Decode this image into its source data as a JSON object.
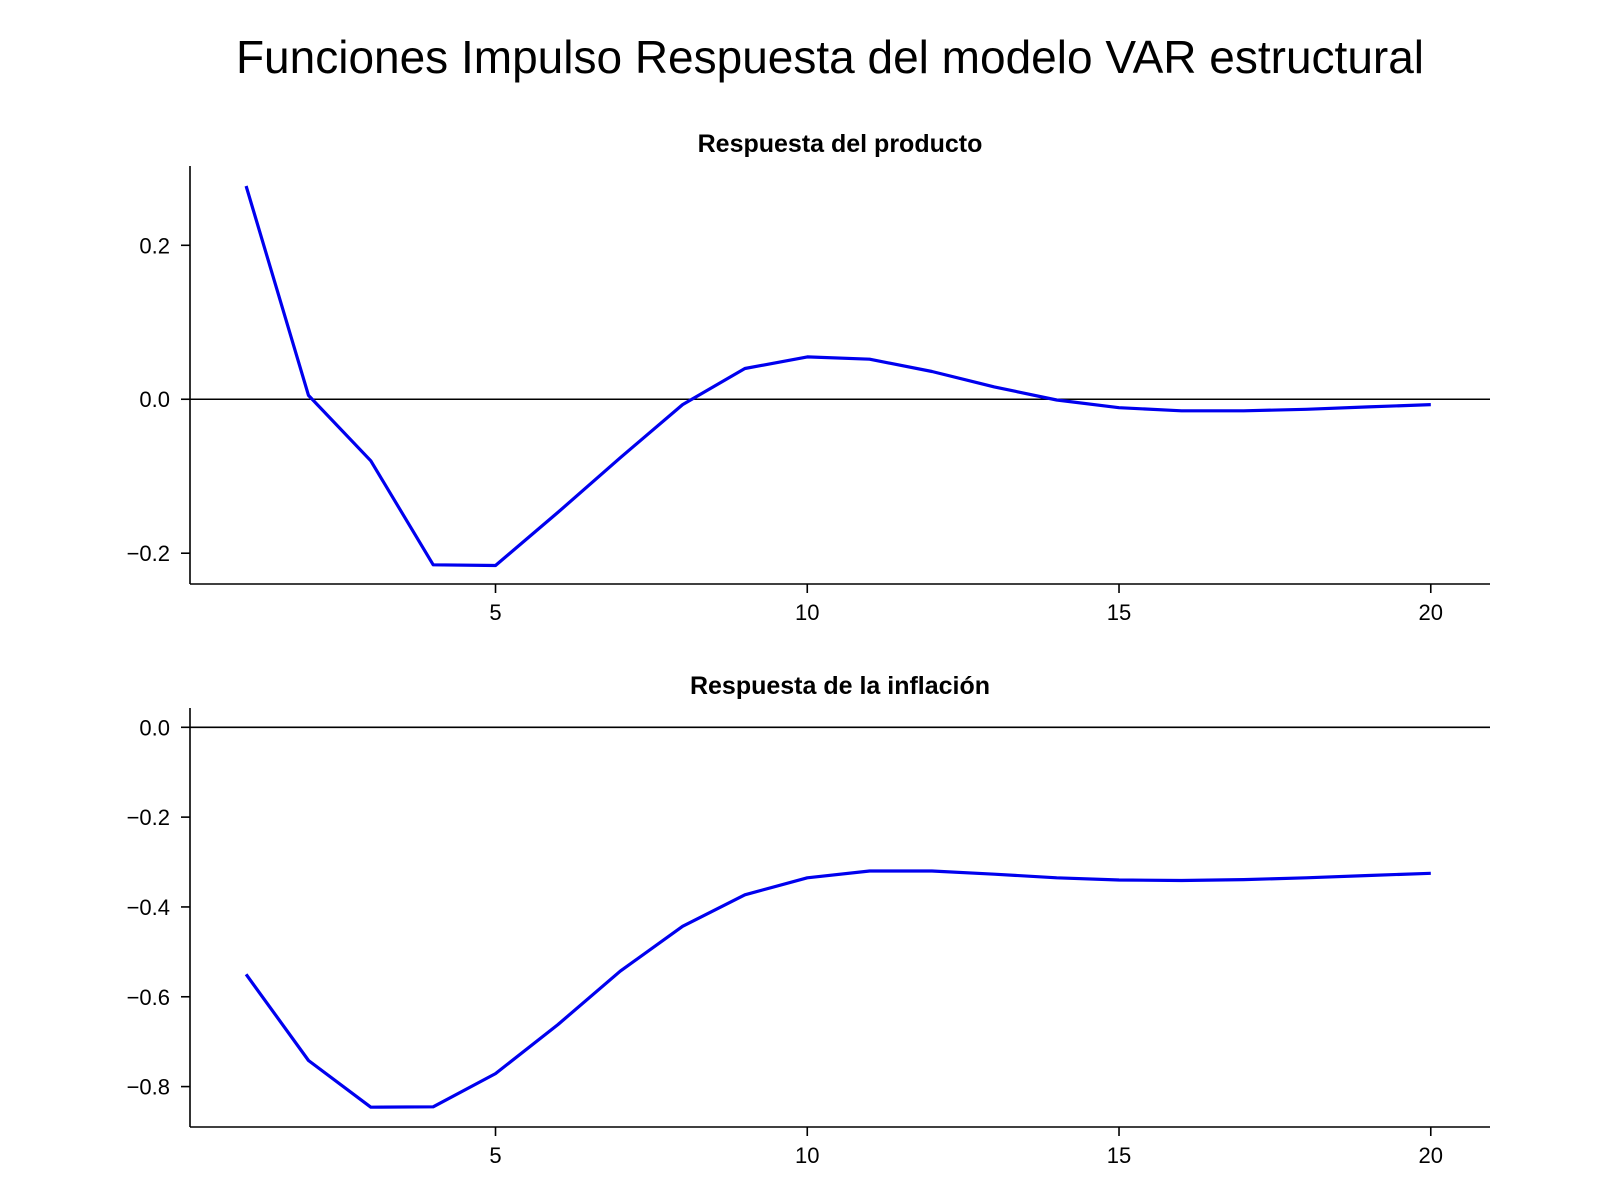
{
  "figure": {
    "title": "Funciones Impulso Respuesta del modelo VAR estructural"
  },
  "colors": {
    "line": "#0000ee",
    "axis": "#000000"
  },
  "chart_data": [
    {
      "type": "line",
      "title": "Respuesta del producto",
      "xlabel": "",
      "ylabel": "",
      "x": [
        1,
        2,
        3,
        4,
        5,
        6,
        7,
        8,
        9,
        10,
        11,
        12,
        13,
        14,
        15,
        16,
        17,
        18,
        19,
        20
      ],
      "series": [
        {
          "values": [
            0.277,
            0.005,
            -0.08,
            -0.215,
            -0.216,
            -0.147,
            -0.076,
            -0.007,
            0.04,
            0.055,
            0.052,
            0.036,
            0.016,
            -0.001,
            -0.011,
            -0.015,
            -0.015,
            -0.013,
            -0.01,
            -0.007
          ]
        }
      ],
      "xlim": [
        0.1,
        20.95
      ],
      "ylim": [
        -0.24,
        0.303
      ],
      "xticks": [
        5,
        10,
        15,
        20
      ],
      "xtick_labels": [
        "5",
        "10",
        "15",
        "20"
      ],
      "yticks": [
        -0.2,
        0.0,
        0.2
      ],
      "ytick_labels": [
        "−0.2",
        "0.0",
        "0.2"
      ],
      "zero_line": true,
      "grid": false,
      "legend": "none"
    },
    {
      "type": "line",
      "title": "Respuesta de la inflación",
      "xlabel": "",
      "ylabel": "",
      "x": [
        1,
        2,
        3,
        4,
        5,
        6,
        7,
        8,
        9,
        10,
        11,
        12,
        13,
        14,
        15,
        16,
        17,
        18,
        19,
        20
      ],
      "series": [
        {
          "values": [
            -0.55,
            -0.742,
            -0.846,
            -0.845,
            -0.771,
            -0.662,
            -0.543,
            -0.443,
            -0.373,
            -0.335,
            -0.32,
            -0.32,
            -0.327,
            -0.335,
            -0.34,
            -0.341,
            -0.339,
            -0.335,
            -0.33,
            -0.325
          ]
        }
      ],
      "xlim": [
        0.1,
        20.95
      ],
      "ylim": [
        -0.89,
        0.043
      ],
      "xticks": [
        5,
        10,
        15,
        20
      ],
      "xtick_labels": [
        "5",
        "10",
        "15",
        "20"
      ],
      "yticks": [
        -0.8,
        -0.6,
        -0.4,
        -0.2,
        0.0
      ],
      "ytick_labels": [
        "−0.8",
        "−0.6",
        "−0.4",
        "−0.2",
        "0.0"
      ],
      "zero_line": true,
      "grid": false,
      "legend": "none"
    }
  ]
}
